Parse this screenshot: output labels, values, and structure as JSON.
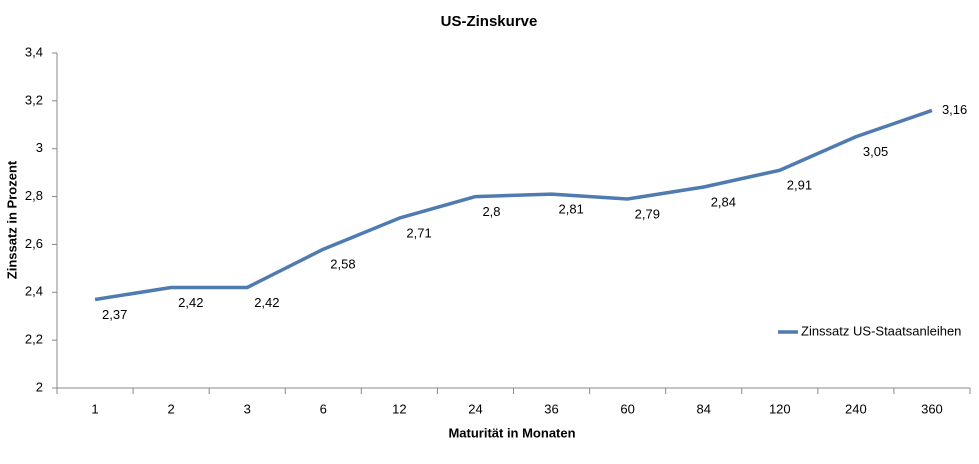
{
  "chart_data": {
    "type": "line",
    "title": "US-Zinskurve",
    "x_label": "Maturität in Monaten",
    "y_label": "Zinssatz in Prozent",
    "categories": [
      "1",
      "2",
      "3",
      "6",
      "12",
      "24",
      "36",
      "60",
      "84",
      "120",
      "240",
      "360"
    ],
    "series": [
      {
        "name": "Zinssatz US-Staatsanleihen",
        "color": "#4f7bb0",
        "values": [
          2.37,
          2.42,
          2.42,
          2.58,
          2.71,
          2.8,
          2.81,
          2.79,
          2.84,
          2.91,
          3.05,
          3.16
        ],
        "value_labels": [
          "2,37",
          "2,42",
          "2,42",
          "2,58",
          "2,71",
          "2,8",
          "2,81",
          "2,79",
          "2,84",
          "2,91",
          "3,05",
          "3,16"
        ]
      }
    ],
    "ylim": [
      2,
      3.4
    ],
    "yticks": [
      2,
      {
        "value": 2.2,
        "label": "2,2"
      },
      {
        "value": 2.4,
        "label": "2,4"
      },
      {
        "value": 2.6,
        "label": "2,6"
      },
      {
        "value": 2.8,
        "label": "2,8"
      },
      3,
      {
        "value": 3.2,
        "label": "3,2"
      },
      {
        "value": 3.4,
        "label": "3,4"
      }
    ],
    "legend": "right",
    "grid": false
  }
}
